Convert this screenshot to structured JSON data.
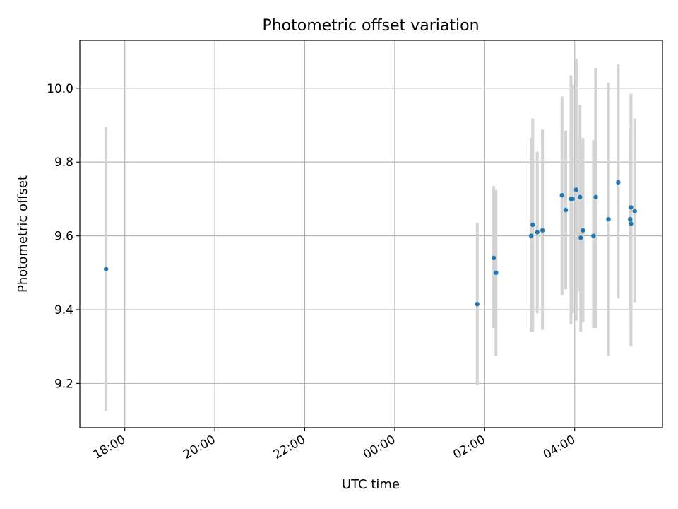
{
  "chart_data": {
    "type": "scatter",
    "title": "Photometric offset variation",
    "xlabel": "UTC time",
    "ylabel": "Photometric offset",
    "x_tick_labels": [
      "18:00",
      "20:00",
      "22:00",
      "00:00",
      "02:00",
      "04:00"
    ],
    "y_tick_labels": [
      "9.2",
      "9.4",
      "9.6",
      "9.8",
      "10.0"
    ],
    "y_ticks": [
      9.2,
      9.4,
      9.6,
      9.8,
      10.0
    ],
    "ylim": [
      9.08,
      10.13
    ],
    "xlim": [
      "17:00",
      "05:57"
    ],
    "grid": true,
    "colors": {
      "point": "#1f77b4",
      "errorbar": "#d3d3d3",
      "grid": "#b0b0b0"
    },
    "series": [
      {
        "points": [
          {
            "x": "17:35",
            "y": 9.51,
            "yerr_low": 9.125,
            "yerr_high": 9.895
          },
          {
            "x": "01:50",
            "y": 9.415,
            "yerr_low": 9.195,
            "yerr_high": 9.635
          },
          {
            "x": "02:12",
            "y": 9.54,
            "yerr_low": 9.35,
            "yerr_high": 9.735
          },
          {
            "x": "02:15",
            "y": 9.5,
            "yerr_low": 9.275,
            "yerr_high": 9.725
          },
          {
            "x": "03:02",
            "y": 9.6,
            "yerr_low": 9.34,
            "yerr_high": 9.865
          },
          {
            "x": "03:04",
            "y": 9.63,
            "yerr_low": 9.34,
            "yerr_high": 9.918
          },
          {
            "x": "03:10",
            "y": 9.61,
            "yerr_low": 9.39,
            "yerr_high": 9.828
          },
          {
            "x": "03:17",
            "y": 9.615,
            "yerr_low": 9.345,
            "yerr_high": 9.888
          },
          {
            "x": "03:43",
            "y": 9.71,
            "yerr_low": 9.44,
            "yerr_high": 9.978
          },
          {
            "x": "03:48",
            "y": 9.67,
            "yerr_low": 9.455,
            "yerr_high": 9.885
          },
          {
            "x": "03:55",
            "y": 9.7,
            "yerr_low": 9.36,
            "yerr_high": 10.035
          },
          {
            "x": "03:57",
            "y": 9.7,
            "yerr_low": 9.39,
            "yerr_high": 10.01
          },
          {
            "x": "04:02",
            "y": 9.725,
            "yerr_low": 9.37,
            "yerr_high": 10.08
          },
          {
            "x": "04:07",
            "y": 9.705,
            "yerr_low": 9.45,
            "yerr_high": 9.955
          },
          {
            "x": "04:08",
            "y": 9.595,
            "yerr_low": 9.34,
            "yerr_high": 9.85
          },
          {
            "x": "04:11",
            "y": 9.615,
            "yerr_low": 9.365,
            "yerr_high": 9.865
          },
          {
            "x": "04:25",
            "y": 9.6,
            "yerr_low": 9.35,
            "yerr_high": 9.86
          },
          {
            "x": "04:28",
            "y": 9.705,
            "yerr_low": 9.35,
            "yerr_high": 10.055
          },
          {
            "x": "04:45",
            "y": 9.645,
            "yerr_low": 9.275,
            "yerr_high": 10.015
          },
          {
            "x": "04:58",
            "y": 9.745,
            "yerr_low": 9.43,
            "yerr_high": 10.065
          },
          {
            "x": "05:14",
            "y": 9.645,
            "yerr_low": 9.4,
            "yerr_high": 9.89
          },
          {
            "x": "05:15",
            "y": 9.677,
            "yerr_low": 9.37,
            "yerr_high": 9.985
          },
          {
            "x": "05:15",
            "y": 9.633,
            "yerr_low": 9.3,
            "yerr_high": 9.965
          },
          {
            "x": "05:20",
            "y": 9.667,
            "yerr_low": 9.42,
            "yerr_high": 9.918
          }
        ]
      }
    ]
  }
}
